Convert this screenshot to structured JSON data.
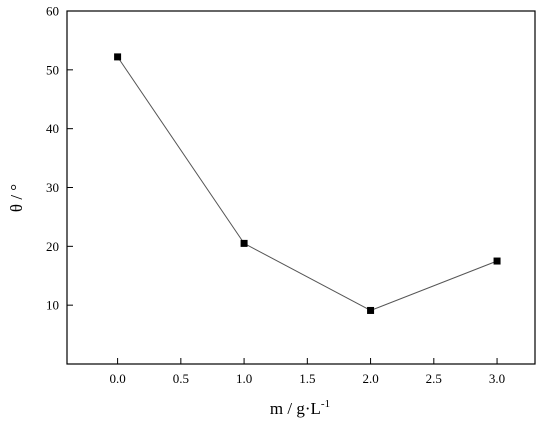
{
  "chart_data": {
    "type": "line",
    "title": "",
    "xlabel": "m / g·L",
    "xlabel_sup": "-1",
    "ylabel": "θ / °",
    "xlim": [
      -0.4,
      3.3
    ],
    "ylim": [
      0,
      60
    ],
    "x_ticks": [
      0.0,
      0.5,
      1.0,
      1.5,
      2.0,
      2.5,
      3.0
    ],
    "x_tick_labels": [
      "0.0",
      "0.5",
      "1.0",
      "1.5",
      "2.0",
      "2.5",
      "3.0"
    ],
    "y_ticks": [
      10,
      20,
      30,
      40,
      50,
      60
    ],
    "y_tick_labels": [
      "10",
      "20",
      "30",
      "40",
      "50",
      "60"
    ],
    "grid": false,
    "legend": "none",
    "marker": "square",
    "series": [
      {
        "x": [
          0.0,
          1.0,
          2.0,
          3.0
        ],
        "y": [
          52.2,
          20.5,
          9.1,
          17.5
        ]
      }
    ]
  }
}
